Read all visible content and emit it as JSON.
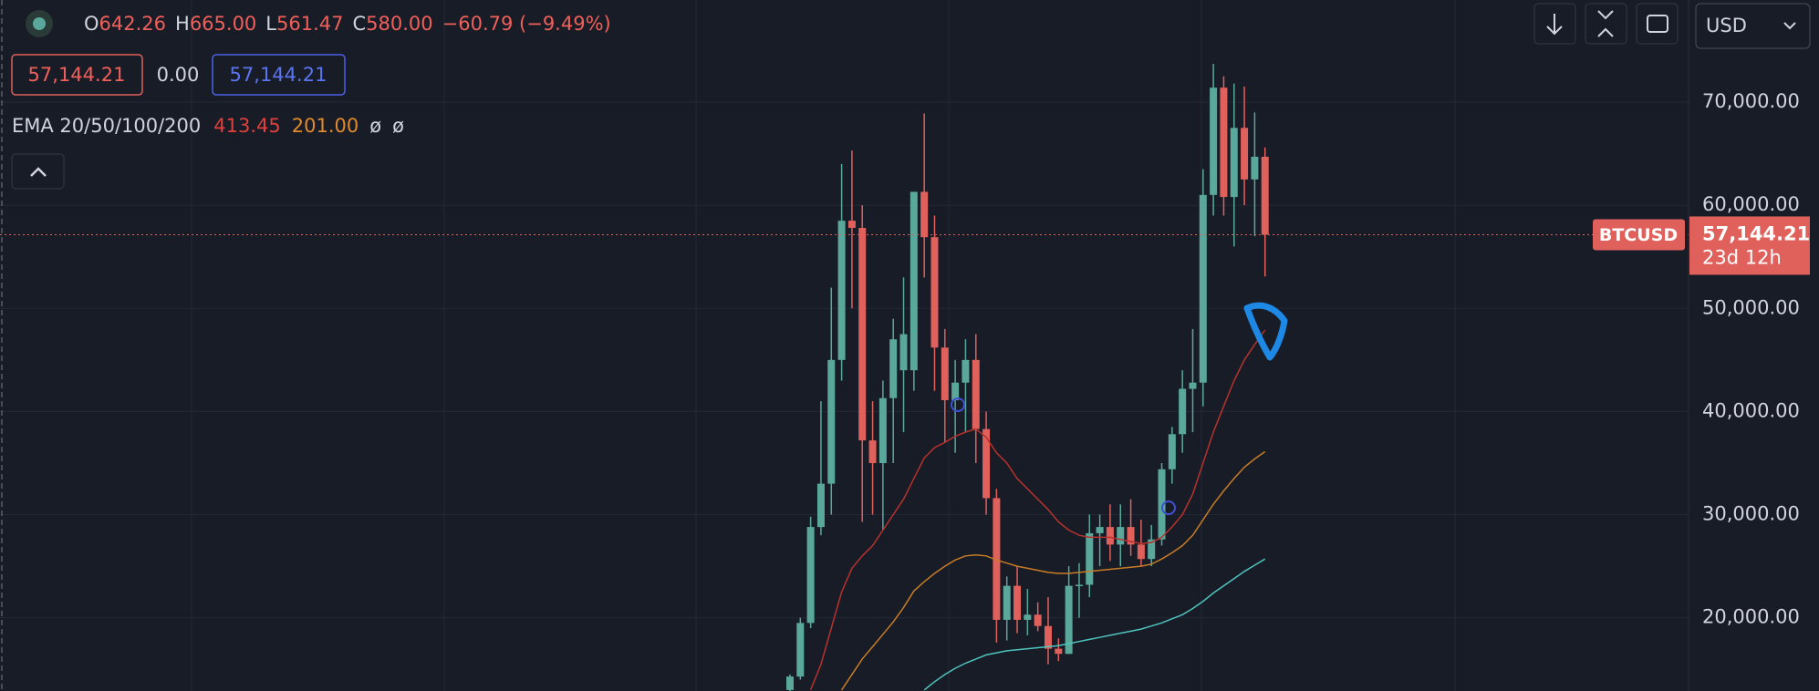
{
  "header": {
    "open_label": "O",
    "open": "642.26",
    "high_label": "H",
    "high": "665.00",
    "low_label": "L",
    "low": "561.47",
    "close_label": "C",
    "close": "580.00",
    "change": "−60.79 (−9.49%)",
    "bid": "57,144.21",
    "spread": "0.00",
    "ask": "57,144.21",
    "indicator": "EMA 20/50/100/200",
    "ema_values": [
      "413.45",
      "201.00",
      "ø",
      "ø"
    ]
  },
  "toolbar": {
    "currency": "USD"
  },
  "chart_data": {
    "type": "candlestick",
    "categories": [
      null,
      null,
      null,
      null,
      null,
      null,
      null,
      null,
      null,
      null,
      null,
      null,
      null,
      null,
      null,
      null,
      null,
      null,
      null,
      null,
      null,
      null,
      null,
      null,
      null,
      null,
      null,
      null,
      null,
      null,
      null,
      null,
      null,
      null,
      null,
      null,
      null,
      null,
      null,
      null,
      null,
      null,
      null,
      null,
      null,
      null,
      null
    ],
    "open": [
      13000,
      14300,
      19500,
      28800,
      33000,
      45000,
      58500,
      57800,
      37200,
      35000,
      41300,
      44000,
      44000,
      61300,
      56900,
      46200,
      41100,
      42800,
      45000,
      38300,
      31600,
      19800,
      23100,
      19800,
      20300,
      19200,
      17000,
      16500,
      23100,
      23200,
      28200,
      28800,
      27100,
      28800,
      27100,
      25700,
      27600,
      34400,
      37800,
      42200,
      42800,
      61000,
      71400,
      60800,
      67500,
      62500,
      64700
    ],
    "high": [
      14500,
      20000,
      29800,
      41000,
      52000,
      64000,
      65300,
      60000,
      41000,
      43000,
      49000,
      53000,
      61300,
      68900,
      59000,
      48000,
      45000,
      47000,
      47500,
      40000,
      32500,
      24000,
      25000,
      22800,
      21500,
      22000,
      18000,
      25000,
      25300,
      30000,
      30000,
      31000,
      31000,
      31500,
      29500,
      29000,
      35000,
      38500,
      44000,
      48000,
      63500,
      73700,
      72500,
      71800,
      71500,
      69000,
      65600
    ],
    "low": [
      12900,
      14000,
      19000,
      28000,
      30000,
      43000,
      50000,
      29300,
      30000,
      28500,
      35000,
      38000,
      42000,
      53000,
      42000,
      37000,
      36000,
      38000,
      35000,
      30000,
      17600,
      17800,
      18500,
      18300,
      18700,
      15500,
      15800,
      16500,
      20000,
      22000,
      25000,
      25500,
      25000,
      26000,
      25000,
      25000,
      27000,
      33000,
      36000,
      38000,
      40500,
      59000,
      59000,
      56000,
      60000,
      57000,
      53100
    ],
    "close": [
      14300,
      19500,
      28800,
      33000,
      45000,
      58500,
      57800,
      37200,
      35000,
      41300,
      47000,
      47500,
      61300,
      56900,
      46200,
      41100,
      42800,
      45000,
      38300,
      31600,
      19800,
      23100,
      19800,
      20300,
      19200,
      17000,
      16500,
      23100,
      23200,
      28200,
      28800,
      27100,
      28800,
      27100,
      25700,
      27600,
      34400,
      37800,
      42200,
      42800,
      61000,
      71400,
      60800,
      67500,
      62500,
      64700,
      57144.21
    ],
    "up_color": "#5aa89b",
    "down_color": "#e0605c",
    "ema": [
      {
        "color": "#b8322d",
        "values": [
          null,
          null,
          13000,
          15500,
          19000,
          22500,
          24800,
          26000,
          27000,
          28500,
          30000,
          31500,
          33500,
          35500,
          36500,
          37000,
          37600,
          38000,
          38300,
          37500,
          36000,
          35000,
          33500,
          32500,
          31500,
          30500,
          29300,
          28500,
          28000,
          27800,
          27800,
          27800,
          27600,
          27400,
          27200,
          27300,
          27800,
          28800,
          30000,
          32000,
          35000,
          38000,
          40500,
          43000,
          45000,
          46500,
          47900
        ]
      },
      {
        "color": "#c77c25",
        "values": [
          null,
          null,
          null,
          null,
          null,
          13000,
          14500,
          16000,
          17200,
          18400,
          19600,
          21000,
          22600,
          23500,
          24300,
          25000,
          25600,
          26000,
          26100,
          26000,
          25600,
          25300,
          25000,
          24800,
          24600,
          24400,
          24300,
          24300,
          24400,
          24500,
          24600,
          24700,
          24800,
          24900,
          25000,
          25200,
          25700,
          26300,
          27000,
          28000,
          29500,
          31000,
          32300,
          33500,
          34600,
          35400,
          36100
        ]
      },
      {
        "color": "#4fc3bd",
        "values": [
          null,
          null,
          null,
          null,
          null,
          null,
          null,
          null,
          null,
          null,
          null,
          null,
          null,
          13000,
          13800,
          14500,
          15100,
          15600,
          16000,
          16400,
          16600,
          16800,
          16900,
          17000,
          17100,
          17200,
          17300,
          17500,
          17700,
          17900,
          18100,
          18300,
          18500,
          18700,
          18900,
          19200,
          19500,
          19900,
          20300,
          20900,
          21600,
          22400,
          23100,
          23800,
          24500,
          25100,
          25700
        ]
      }
    ],
    "ylim": [
      12900,
      79900
    ],
    "yticks": [
      {
        "value": 20000,
        "label": "20,000.00"
      },
      {
        "value": 30000,
        "label": "30,000.00"
      },
      {
        "value": 40000,
        "label": "40,000.00"
      },
      {
        "value": 50000,
        "label": "50,000.00"
      },
      {
        "value": 60000,
        "label": "60,000.00"
      },
      {
        "value": 70000,
        "label": "70,000.00"
      }
    ],
    "grid": true,
    "last_price": {
      "value": 57144.21,
      "label": "57,144.21"
    },
    "symbol": "BTCUSD",
    "countdown": "23d 12h"
  }
}
